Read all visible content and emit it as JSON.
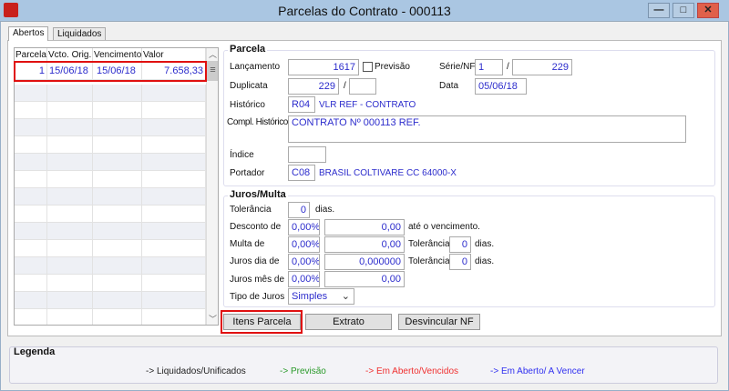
{
  "window": {
    "title": "Parcelas do Contrato - 000113",
    "minimize": "—",
    "maximize": "□",
    "close": "✕"
  },
  "tabs": [
    {
      "label": "Abertos",
      "active": true
    },
    {
      "label": "Liquidados"
    }
  ],
  "grid": {
    "columns": [
      "Parcela",
      "Vcto. Orig.",
      "Vencimento",
      "Valor"
    ],
    "rows": [
      {
        "parcela": "1",
        "vcto_orig": "15/06/18",
        "vencimento": "15/06/18",
        "valor": "7.658,33"
      }
    ]
  },
  "parcela": {
    "title": "Parcela",
    "lancamento_label": "Lançamento",
    "lancamento": "1617",
    "previsao_label": "Previsão",
    "previsao_checked": false,
    "serie_nf_label": "Série/NF",
    "serie": "1",
    "nf": "229",
    "duplicata_label": "Duplicata",
    "duplicata": "229",
    "duplicata_suffix": "",
    "sep": "/",
    "data_label": "Data",
    "data": "05/06/18",
    "historico_label": "Histórico",
    "historico_code": "R04",
    "historico_desc": "VLR REF - CONTRATO",
    "compl_label": "Compl. Histórico",
    "compl": "CONTRATO Nº 000113 REF.",
    "indice_label": "Índice",
    "indice": "",
    "portador_label": "Portador",
    "portador_code": "C08",
    "portador_desc": "BRASIL COLTIVARE CC 64000-X"
  },
  "juros": {
    "title": "Juros/Multa",
    "tolerancia_label": "Tolerância",
    "tolerancia": "0",
    "dias": "dias.",
    "desconto_label": "Desconto de",
    "desconto_pct": "0,00%",
    "desconto_val": "0,00",
    "ate_venc": "até o vencimento.",
    "multa_label": "Multa de",
    "multa_pct": "0,00%",
    "multa_val": "0,00",
    "multa_tol": "0",
    "juros_dia_label": "Juros dia de",
    "juros_dia_pct": "0,00%",
    "juros_dia_val": "0,000000",
    "juros_dia_tol": "0",
    "juros_mes_label": "Juros mês de",
    "juros_mes_pct": "0,00%",
    "juros_mes_val": "0,00",
    "tipo_label": "Tipo de Juros",
    "tipo": "Simples"
  },
  "buttons": {
    "itens": "Itens Parcela",
    "extrato": "Extrato",
    "desvincular": "Desvincular NF"
  },
  "legend": {
    "title": "Legenda",
    "items": [
      {
        "label": "-> Liquidados/Unificados",
        "color": "#222222"
      },
      {
        "label": "-> Previsão",
        "color": "#2a9a2a"
      },
      {
        "label": "-> Em Aberto/Vencidos",
        "color": "#f03030"
      },
      {
        "label": "-> Em Aberto/ A Vencer",
        "color": "#3030f0"
      }
    ]
  },
  "colors": {
    "highlight": "#e01010",
    "value_text": "#2c2ccc"
  }
}
